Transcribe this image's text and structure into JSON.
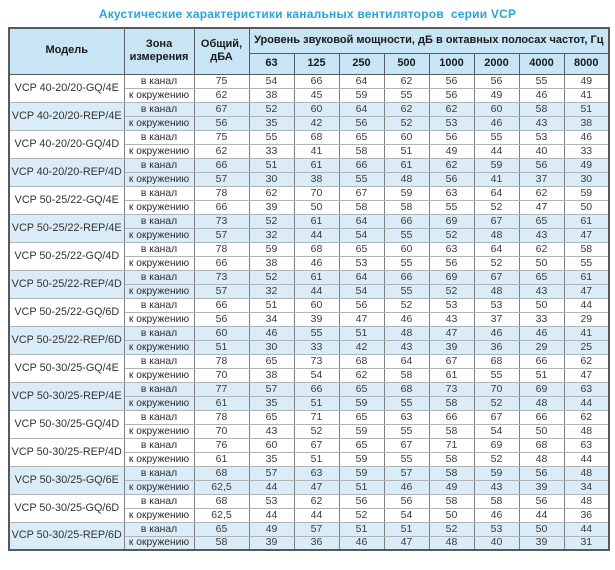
{
  "title": "Акустические характеристики канальных вентиляторов  серии VCP",
  "table": {
    "headers": {
      "model": "Модель",
      "zone": "Зона\nизмерения",
      "total": "Общий,\nдБА",
      "octave": "Уровень звуковой мощности, дБ в октавных полосах частот, Гц",
      "frequencies": [
        "63",
        "125",
        "250",
        "500",
        "1000",
        "2000",
        "4000",
        "8000"
      ]
    },
    "zone_labels": {
      "duct": "в канал",
      "ambient": "к окружению"
    },
    "rows": [
      {
        "model": "VCP 40-20/20-GQ/4E",
        "shaded": false,
        "duct": {
          "total": "75",
          "levels": [
            "54",
            "66",
            "64",
            "62",
            "56",
            "56",
            "55",
            "49"
          ]
        },
        "ambient": {
          "total": "62",
          "levels": [
            "38",
            "45",
            "59",
            "55",
            "56",
            "49",
            "46",
            "41"
          ]
        }
      },
      {
        "model": "VCP 40-20/20-REP/4E",
        "shaded": true,
        "duct": {
          "total": "67",
          "levels": [
            "52",
            "60",
            "64",
            "62",
            "62",
            "60",
            "58",
            "51"
          ]
        },
        "ambient": {
          "total": "56",
          "levels": [
            "35",
            "42",
            "56",
            "52",
            "53",
            "46",
            "43",
            "38"
          ]
        }
      },
      {
        "model": "VCP 40-20/20-GQ/4D",
        "shaded": false,
        "duct": {
          "total": "75",
          "levels": [
            "55",
            "68",
            "65",
            "60",
            "56",
            "55",
            "53",
            "46"
          ]
        },
        "ambient": {
          "total": "62",
          "levels": [
            "33",
            "41",
            "58",
            "51",
            "49",
            "44",
            "40",
            "33"
          ]
        }
      },
      {
        "model": "VCP 40-20/20-REP/4D",
        "shaded": true,
        "duct": {
          "total": "66",
          "levels": [
            "51",
            "61",
            "66",
            "61",
            "62",
            "59",
            "56",
            "49"
          ]
        },
        "ambient": {
          "total": "57",
          "levels": [
            "30",
            "38",
            "55",
            "48",
            "56",
            "41",
            "37",
            "30"
          ]
        }
      },
      {
        "model": "VCP 50-25/22-GQ/4E",
        "shaded": false,
        "duct": {
          "total": "78",
          "levels": [
            "62",
            "70",
            "67",
            "59",
            "63",
            "64",
            "62",
            "59"
          ]
        },
        "ambient": {
          "total": "66",
          "levels": [
            "39",
            "50",
            "58",
            "58",
            "55",
            "52",
            "47",
            "50"
          ]
        }
      },
      {
        "model": "VCP 50-25/22-REP/4E",
        "shaded": true,
        "duct": {
          "total": "73",
          "levels": [
            "52",
            "61",
            "64",
            "66",
            "69",
            "67",
            "65",
            "61"
          ]
        },
        "ambient": {
          "total": "57",
          "levels": [
            "32",
            "44",
            "54",
            "55",
            "52",
            "48",
            "43",
            "47"
          ]
        }
      },
      {
        "model": "VCP 50-25/22-GQ/4D",
        "shaded": false,
        "duct": {
          "total": "78",
          "levels": [
            "59",
            "68",
            "65",
            "60",
            "63",
            "64",
            "62",
            "58"
          ]
        },
        "ambient": {
          "total": "66",
          "levels": [
            "38",
            "46",
            "53",
            "55",
            "56",
            "52",
            "50",
            "55"
          ]
        }
      },
      {
        "model": "VCP 50-25/22-REP/4D",
        "shaded": true,
        "duct": {
          "total": "73",
          "levels": [
            "52",
            "61",
            "64",
            "66",
            "69",
            "67",
            "65",
            "61"
          ]
        },
        "ambient": {
          "total": "57",
          "levels": [
            "32",
            "44",
            "54",
            "55",
            "52",
            "48",
            "43",
            "47"
          ]
        }
      },
      {
        "model": "VCP 50-25/22-GQ/6D",
        "shaded": false,
        "duct": {
          "total": "66",
          "levels": [
            "51",
            "60",
            "56",
            "52",
            "53",
            "53",
            "50",
            "44"
          ]
        },
        "ambient": {
          "total": "56",
          "levels": [
            "34",
            "39",
            "47",
            "46",
            "43",
            "37",
            "33",
            "29"
          ]
        }
      },
      {
        "model": "VCP 50-25/22-REP/6D",
        "shaded": true,
        "duct": {
          "total": "60",
          "levels": [
            "46",
            "55",
            "51",
            "48",
            "47",
            "46",
            "46",
            "41"
          ]
        },
        "ambient": {
          "total": "51",
          "levels": [
            "30",
            "33",
            "42",
            "43",
            "39",
            "36",
            "29",
            "25"
          ]
        }
      },
      {
        "model": "VCP 50-30/25-GQ/4E",
        "shaded": false,
        "duct": {
          "total": "78",
          "levels": [
            "65",
            "73",
            "68",
            "64",
            "67",
            "68",
            "66",
            "62"
          ]
        },
        "ambient": {
          "total": "70",
          "levels": [
            "38",
            "54",
            "62",
            "58",
            "61",
            "55",
            "51",
            "47"
          ]
        }
      },
      {
        "model": "VCP 50-30/25-REP/4E",
        "shaded": true,
        "duct": {
          "total": "77",
          "levels": [
            "57",
            "66",
            "65",
            "68",
            "73",
            "70",
            "69",
            "63"
          ]
        },
        "ambient": {
          "total": "61",
          "levels": [
            "35",
            "51",
            "59",
            "55",
            "58",
            "52",
            "48",
            "44"
          ]
        }
      },
      {
        "model": "VCP 50-30/25-GQ/4D",
        "shaded": false,
        "duct": {
          "total": "78",
          "levels": [
            "65",
            "71",
            "65",
            "63",
            "66",
            "67",
            "66",
            "62"
          ]
        },
        "ambient": {
          "total": "70",
          "levels": [
            "43",
            "52",
            "59",
            "55",
            "58",
            "54",
            "50",
            "48"
          ]
        }
      },
      {
        "model": "VCP 50-30/25-REP/4D",
        "shaded": false,
        "duct": {
          "total": "76",
          "levels": [
            "60",
            "67",
            "65",
            "67",
            "71",
            "69",
            "68",
            "63"
          ]
        },
        "ambient": {
          "total": "61",
          "levels": [
            "35",
            "51",
            "59",
            "55",
            "58",
            "52",
            "48",
            "44"
          ]
        }
      },
      {
        "model": "VCP 50-30/25-GQ/6E",
        "shaded": true,
        "duct": {
          "total": "68",
          "levels": [
            "57",
            "63",
            "59",
            "57",
            "58",
            "59",
            "56",
            "48"
          ]
        },
        "ambient": {
          "total": "62,5",
          "levels": [
            "44",
            "47",
            "51",
            "46",
            "49",
            "43",
            "39",
            "34"
          ]
        }
      },
      {
        "model": "VCP 50-30/25-GQ/6D",
        "shaded": false,
        "duct": {
          "total": "68",
          "levels": [
            "53",
            "62",
            "56",
            "56",
            "58",
            "58",
            "56",
            "48"
          ]
        },
        "ambient": {
          "total": "62,5",
          "levels": [
            "44",
            "44",
            "52",
            "54",
            "50",
            "46",
            "44",
            "36"
          ]
        }
      },
      {
        "model": "VCP 50-30/25-REP/6D",
        "shaded": true,
        "duct": {
          "total": "65",
          "levels": [
            "49",
            "57",
            "51",
            "51",
            "52",
            "53",
            "50",
            "44"
          ]
        },
        "ambient": {
          "total": "58",
          "levels": [
            "39",
            "36",
            "46",
            "47",
            "48",
            "40",
            "39",
            "31"
          ]
        }
      }
    ]
  },
  "colors": {
    "title_blue": "#2aa4dc",
    "header_bg": "#c8e5f5",
    "shaded_row_bg": "#d9ecf8",
    "border_dark": "#58595b"
  }
}
